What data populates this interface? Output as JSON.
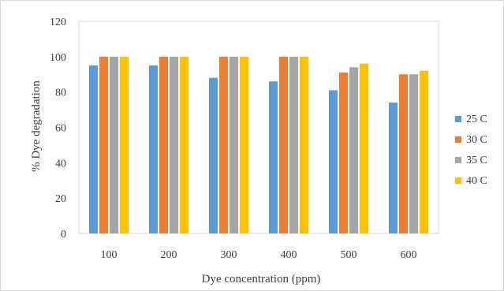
{
  "chart_data": {
    "type": "bar",
    "title": "",
    "xlabel": "Dye concentration (ppm)",
    "ylabel": "% Dye degradation",
    "categories": [
      "100",
      "200",
      "300",
      "400",
      "500",
      "600"
    ],
    "ylim": [
      0,
      120
    ],
    "yticks": [
      "0",
      "20",
      "40",
      "60",
      "80",
      "100",
      "120"
    ],
    "grid": false,
    "legend_position": "right",
    "series": [
      {
        "name": "25 C",
        "color": "#5b9bd5",
        "values": [
          95,
          95,
          88,
          86,
          81,
          74
        ]
      },
      {
        "name": "30 C",
        "color": "#ed7d31",
        "values": [
          100,
          100,
          100,
          100,
          91,
          90
        ]
      },
      {
        "name": "35 C",
        "color": "#a5a5a5",
        "values": [
          100,
          100,
          100,
          100,
          94,
          90
        ]
      },
      {
        "name": "40 C",
        "color": "#ffc000",
        "values": [
          100,
          100,
          100,
          100,
          96,
          92
        ]
      }
    ]
  }
}
